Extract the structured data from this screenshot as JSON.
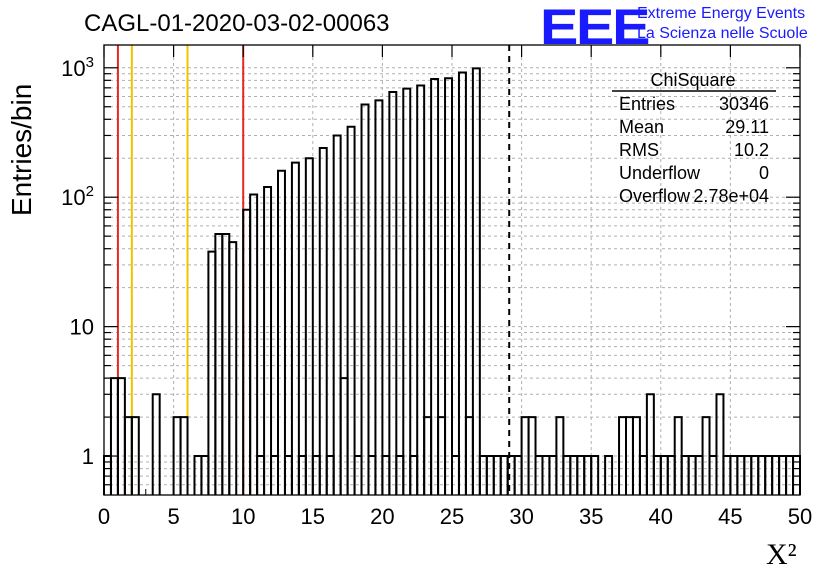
{
  "title": "CAGL-01-2020-03-02-00063",
  "logo": {
    "mark": "EEE",
    "line1": "Extreme Energy Events",
    "line2": "La Scienza nelle Scuole",
    "color": "#1a1aff"
  },
  "stats_box": {
    "title": "ChiSquare",
    "rows": [
      {
        "label": "Entries",
        "value": "30346"
      },
      {
        "label": "Mean",
        "value": "29.11"
      },
      {
        "label": "RMS",
        "value": "10.2"
      },
      {
        "label": "Underflow",
        "value": "0"
      },
      {
        "label": "Overflow",
        "value": "2.78e+04"
      }
    ]
  },
  "chart_data": {
    "type": "histogram",
    "title": "CAGL-01-2020-03-02-00063",
    "xlabel": "X²",
    "ylabel": "Entries/bin",
    "xlim": [
      0,
      50
    ],
    "ylim": [
      0.5,
      1500
    ],
    "yscale": "log",
    "grid": true,
    "bin_width": 0.5,
    "x_ticks": [
      "0",
      "5",
      "10",
      "15",
      "20",
      "25",
      "30",
      "35",
      "40",
      "45",
      "50"
    ],
    "y_ticks": [
      {
        "value": 1,
        "label": "1"
      },
      {
        "value": 10,
        "label": "10"
      },
      {
        "value": 100,
        "label": "10²"
      },
      {
        "value": 1000,
        "label": "10³"
      }
    ],
    "bins": [
      [
        0,
        1
      ],
      [
        0.5,
        4
      ],
      [
        1,
        4
      ],
      [
        1.5,
        2
      ],
      [
        2,
        2
      ],
      [
        3.5,
        3
      ],
      [
        5,
        2
      ],
      [
        5.5,
        2
      ],
      [
        6.5,
        1
      ],
      [
        7,
        1
      ],
      [
        7.5,
        38
      ],
      [
        8,
        52
      ],
      [
        8.5,
        52
      ],
      [
        9,
        45
      ],
      [
        10,
        80
      ],
      [
        10.5,
        105
      ],
      [
        11,
        1
      ],
      [
        11.5,
        120
      ],
      [
        12,
        1
      ],
      [
        12.5,
        160
      ],
      [
        13,
        1
      ],
      [
        13.5,
        185
      ],
      [
        14,
        1
      ],
      [
        14.5,
        200
      ],
      [
        15,
        1
      ],
      [
        15.5,
        240
      ],
      [
        16,
        1
      ],
      [
        16.5,
        300
      ],
      [
        17,
        4
      ],
      [
        17.5,
        350
      ],
      [
        18,
        1
      ],
      [
        18.5,
        520
      ],
      [
        19,
        1
      ],
      [
        19.5,
        560
      ],
      [
        20,
        1
      ],
      [
        20.5,
        650
      ],
      [
        21,
        1
      ],
      [
        21.5,
        690
      ],
      [
        22,
        1
      ],
      [
        22.5,
        730
      ],
      [
        23,
        2
      ],
      [
        23.5,
        820
      ],
      [
        24,
        2
      ],
      [
        24.5,
        830
      ],
      [
        25,
        1
      ],
      [
        25.5,
        920
      ],
      [
        26,
        2
      ],
      [
        26.5,
        990
      ],
      [
        27,
        1
      ],
      [
        27.5,
        1
      ],
      [
        28,
        1
      ],
      [
        28.5,
        1
      ],
      [
        29,
        1
      ],
      [
        29.5,
        1
      ],
      [
        30,
        2
      ],
      [
        30.5,
        2
      ],
      [
        31,
        1
      ],
      [
        31.5,
        1
      ],
      [
        32,
        1
      ],
      [
        32.5,
        2
      ],
      [
        33,
        1
      ],
      [
        33.5,
        1
      ],
      [
        34,
        1
      ],
      [
        34.5,
        1
      ],
      [
        35,
        1
      ],
      [
        36,
        1
      ],
      [
        37,
        2
      ],
      [
        37.5,
        2
      ],
      [
        38,
        2
      ],
      [
        38.5,
        1
      ],
      [
        39,
        3
      ],
      [
        39.5,
        1
      ],
      [
        40,
        1
      ],
      [
        40.5,
        1
      ],
      [
        41,
        2
      ],
      [
        41.5,
        1
      ],
      [
        42,
        1
      ],
      [
        42.5,
        1
      ],
      [
        43,
        2
      ],
      [
        43.5,
        1
      ],
      [
        44,
        3
      ],
      [
        44.5,
        1
      ],
      [
        45,
        1
      ],
      [
        45.5,
        1
      ],
      [
        46,
        1
      ],
      [
        46.5,
        1
      ],
      [
        47,
        1
      ],
      [
        47.5,
        1
      ],
      [
        48,
        1
      ],
      [
        48.5,
        1
      ],
      [
        49,
        1
      ],
      [
        49.5,
        1
      ]
    ],
    "vertical_lines": [
      {
        "x": 1,
        "color": "#e8281e",
        "style": "solid"
      },
      {
        "x": 2,
        "color": "#f2c200",
        "style": "solid"
      },
      {
        "x": 6,
        "color": "#f2c200",
        "style": "solid"
      },
      {
        "x": 10,
        "color": "#e8281e",
        "style": "solid"
      },
      {
        "x": 29.11,
        "color": "#000000",
        "style": "dashed"
      }
    ]
  }
}
